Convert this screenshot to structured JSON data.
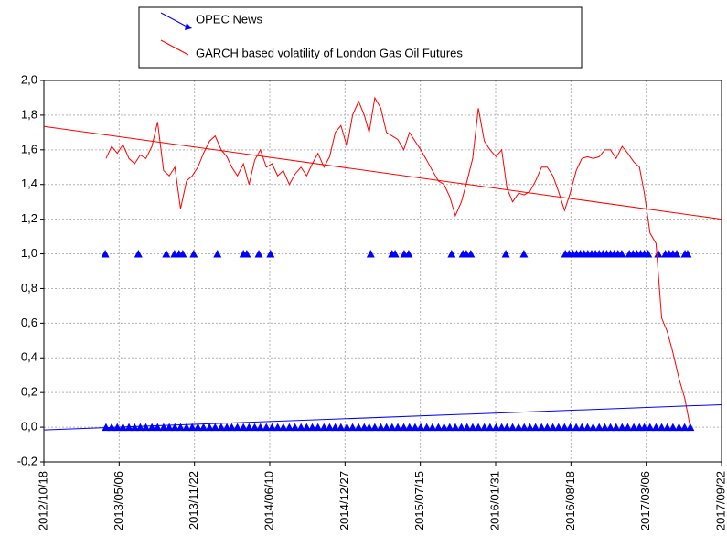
{
  "chart_data": {
    "type": "line",
    "xlim": [
      "2012/10/18",
      "2017/09/22"
    ],
    "xticks": [
      "2012/10/18",
      "2013/05/06",
      "2013/11/22",
      "2014/06/10",
      "2014/12/27",
      "2015/07/15",
      "2016/01/31",
      "2016/08/18",
      "2017/03/06",
      "2017/09/22"
    ],
    "ylim": [
      -0.2,
      2.0
    ],
    "yticks": [
      {
        "value": -0.2,
        "label": "-0,2"
      },
      {
        "value": 0,
        "label": "0,0"
      },
      {
        "value": 0.2,
        "label": "0,2"
      },
      {
        "value": 0.4,
        "label": "0,4"
      },
      {
        "value": 0.6,
        "label": "0,6"
      },
      {
        "value": 0.8,
        "label": "0,8"
      },
      {
        "value": 1.0,
        "label": "1,0"
      },
      {
        "value": 1.2,
        "label": "1,2"
      },
      {
        "value": 1.4,
        "label": "1,4"
      },
      {
        "value": 1.6,
        "label": "1,6"
      },
      {
        "value": 1.8,
        "label": "1,8"
      },
      {
        "value": 2.0,
        "label": "2,0"
      }
    ],
    "grid": true,
    "series": [
      {
        "name": "OPEC News",
        "color": "#0000ff",
        "marker": "triangle",
        "line": false,
        "x": [
          "2013/04/01",
          "2013/04/16",
          "2013/05/01",
          "2013/05/16",
          "2013/06/01",
          "2013/06/16",
          "2013/07/01",
          "2013/07/16",
          "2013/08/01",
          "2013/08/16",
          "2013/09/01",
          "2013/09/16",
          "2013/10/01",
          "2013/10/16",
          "2013/11/01",
          "2013/11/16",
          "2013/12/01",
          "2013/12/16",
          "2014/01/01",
          "2014/01/16",
          "2014/02/01",
          "2014/02/16",
          "2014/03/01",
          "2014/03/16",
          "2014/04/01",
          "2014/04/16",
          "2014/05/01",
          "2014/05/16",
          "2014/06/01",
          "2014/06/16",
          "2014/07/01",
          "2014/07/16",
          "2014/08/01",
          "2014/08/16",
          "2014/09/01",
          "2014/09/16",
          "2014/10/01",
          "2014/10/16",
          "2014/11/01",
          "2014/11/16",
          "2014/12/01",
          "2014/12/16",
          "2015/01/01",
          "2015/01/16",
          "2015/02/01",
          "2015/02/16",
          "2015/03/01",
          "2015/03/16",
          "2015/04/01",
          "2015/04/16",
          "2015/05/01",
          "2015/05/16",
          "2015/06/01",
          "2015/06/16",
          "2015/07/01",
          "2015/07/16",
          "2015/08/01",
          "2015/08/16",
          "2015/09/01",
          "2015/09/16",
          "2015/10/01",
          "2015/10/16",
          "2015/11/01",
          "2015/11/16",
          "2015/12/01",
          "2015/12/16",
          "2016/01/01",
          "2016/01/16",
          "2016/02/01",
          "2016/02/16",
          "2016/03/01",
          "2016/03/16",
          "2016/04/01",
          "2016/04/16",
          "2016/05/01",
          "2016/05/16",
          "2016/06/01",
          "2016/06/16",
          "2016/07/01",
          "2016/07/16",
          "2016/08/01",
          "2016/08/16",
          "2016/09/01",
          "2016/09/16",
          "2016/10/01",
          "2016/10/16",
          "2016/11/01",
          "2016/11/16",
          "2016/12/01",
          "2016/12/16",
          "2017/01/01",
          "2017/01/16",
          "2017/02/01",
          "2017/02/16",
          "2017/03/01",
          "2017/03/16",
          "2017/04/01",
          "2017/04/16",
          "2017/05/01",
          "2017/05/16",
          "2017/06/01",
          "2017/06/16",
          "2017/07/01",
          "2013/03/30",
          "2013/06/26",
          "2013/09/08",
          "2013/09/30",
          "2013/10/12",
          "2013/10/22",
          "2013/11/20",
          "2014/01/22",
          "2014/04/01",
          "2014/04/10",
          "2014/05/12",
          "2014/06/12",
          "2015/03/05",
          "2015/05/01",
          "2015/05/09",
          "2015/06/02",
          "2015/06/14",
          "2015/10/06",
          "2015/11/05",
          "2015/11/14",
          "2015/11/26",
          "2016/02/27",
          "2016/04/15",
          "2016/08/03",
          "2016/08/13",
          "2016/08/23",
          "2016/09/02",
          "2016/09/12",
          "2016/09/22",
          "2016/10/02",
          "2016/10/12",
          "2016/10/22",
          "2016/11/01",
          "2016/11/11",
          "2016/11/21",
          "2016/12/01",
          "2016/12/11",
          "2016/12/21",
          "2016/12/31",
          "2017/01/20",
          "2017/01/30",
          "2017/02/09",
          "2017/02/19",
          "2017/03/01",
          "2017/03/11",
          "2017/04/07",
          "2017/04/26",
          "2017/05/06",
          "2017/05/16",
          "2017/05/26",
          "2017/06/17",
          "2017/06/24"
        ],
        "values": [
          0,
          0,
          0,
          0,
          0,
          0,
          0,
          0,
          0,
          0,
          0,
          0,
          0,
          0,
          0,
          0,
          0,
          0,
          0,
          0,
          0,
          0,
          0,
          0,
          0,
          0,
          0,
          0,
          0,
          0,
          0,
          0,
          0,
          0,
          0,
          0,
          0,
          0,
          0,
          0,
          0,
          0,
          0,
          0,
          0,
          0,
          0,
          0,
          0,
          0,
          0,
          0,
          0,
          0,
          0,
          0,
          0,
          0,
          0,
          0,
          0,
          0,
          0,
          0,
          0,
          0,
          0,
          0,
          0,
          0,
          0,
          0,
          0,
          0,
          0,
          0,
          0,
          0,
          0,
          0,
          0,
          0,
          0,
          0,
          0,
          0,
          0,
          0,
          0,
          0,
          0,
          0,
          0,
          0,
          0,
          0,
          0,
          0,
          0,
          0,
          0,
          0,
          0,
          1,
          1,
          1,
          1,
          1,
          1,
          1,
          1,
          1,
          1,
          1,
          1,
          1,
          1,
          1,
          1,
          1,
          1,
          1,
          1,
          1,
          1,
          1,
          1,
          1,
          1,
          1,
          1,
          1,
          1,
          1,
          1,
          1,
          1,
          1,
          1,
          1,
          1,
          1,
          1,
          1,
          1,
          1,
          1,
          1,
          1,
          1,
          1,
          1,
          1,
          1,
          1
        ]
      },
      {
        "name": "GARCH based volatility of London Gas Oil Futures",
        "color": "#ff0000",
        "marker": "none",
        "line": true,
        "x": [
          "2013/04/01",
          "2013/04/16",
          "2013/05/01",
          "2013/05/16",
          "2013/06/01",
          "2013/06/16",
          "2013/07/01",
          "2013/07/16",
          "2013/08/01",
          "2013/08/16",
          "2013/09/01",
          "2013/09/16",
          "2013/10/01",
          "2013/10/16",
          "2013/11/01",
          "2013/11/16",
          "2013/12/01",
          "2013/12/16",
          "2014/01/01",
          "2014/01/16",
          "2014/02/01",
          "2014/02/16",
          "2014/03/01",
          "2014/03/16",
          "2014/04/01",
          "2014/04/16",
          "2014/05/01",
          "2014/05/16",
          "2014/06/01",
          "2014/06/16",
          "2014/07/01",
          "2014/07/16",
          "2014/08/01",
          "2014/08/16",
          "2014/09/01",
          "2014/09/16",
          "2014/10/01",
          "2014/10/16",
          "2014/11/01",
          "2014/11/16",
          "2014/12/01",
          "2014/12/16",
          "2015/01/01",
          "2015/01/16",
          "2015/02/01",
          "2015/02/16",
          "2015/03/01",
          "2015/03/16",
          "2015/04/01",
          "2015/04/16",
          "2015/05/01",
          "2015/05/16",
          "2015/06/01",
          "2015/06/16",
          "2015/07/01",
          "2015/07/16",
          "2015/08/01",
          "2015/08/16",
          "2015/09/01",
          "2015/09/16",
          "2015/10/01",
          "2015/10/16",
          "2015/11/01",
          "2015/11/16",
          "2015/12/01",
          "2015/12/16",
          "2016/01/01",
          "2016/01/16",
          "2016/02/01",
          "2016/02/16",
          "2016/03/01",
          "2016/03/16",
          "2016/04/01",
          "2016/04/16",
          "2016/05/01",
          "2016/05/16",
          "2016/06/01",
          "2016/06/16",
          "2016/07/01",
          "2016/07/16",
          "2016/08/01",
          "2016/08/16",
          "2016/09/01",
          "2016/09/16",
          "2016/10/01",
          "2016/10/16",
          "2016/11/01",
          "2016/11/16",
          "2016/12/01",
          "2016/12/16",
          "2017/01/01",
          "2017/01/16",
          "2017/02/01",
          "2017/02/16",
          "2017/03/01",
          "2017/03/16",
          "2017/04/01",
          "2017/04/16",
          "2017/05/01",
          "2017/05/16",
          "2017/06/01",
          "2017/06/16",
          "2017/07/01"
        ],
        "values": [
          1.55,
          1.62,
          1.58,
          1.63,
          1.55,
          1.52,
          1.57,
          1.55,
          1.62,
          1.76,
          1.48,
          1.45,
          1.5,
          1.26,
          1.42,
          1.45,
          1.5,
          1.58,
          1.65,
          1.68,
          1.6,
          1.56,
          1.5,
          1.45,
          1.52,
          1.4,
          1.54,
          1.6,
          1.5,
          1.52,
          1.45,
          1.48,
          1.4,
          1.46,
          1.5,
          1.45,
          1.52,
          1.58,
          1.5,
          1.56,
          1.7,
          1.74,
          1.62,
          1.8,
          1.88,
          1.8,
          1.7,
          1.9,
          1.84,
          1.7,
          1.68,
          1.66,
          1.6,
          1.7,
          1.65,
          1.6,
          1.54,
          1.48,
          1.42,
          1.4,
          1.33,
          1.22,
          1.3,
          1.42,
          1.55,
          1.84,
          1.65,
          1.6,
          1.56,
          1.6,
          1.38,
          1.3,
          1.35,
          1.34,
          1.36,
          1.42,
          1.5,
          1.5,
          1.45,
          1.36,
          1.25,
          1.35,
          1.48,
          1.55,
          1.56,
          1.55,
          1.56,
          1.6,
          1.6,
          1.55,
          1.62,
          1.58,
          1.53,
          1.5,
          1.35,
          1.12,
          1.06,
          0.63,
          0.55,
          0.43,
          0.28,
          0.17,
          0.0
        ]
      }
    ],
    "trendlines": [
      {
        "color": "#ff0000",
        "x": [
          "2012/10/18",
          "2017/09/22"
        ],
        "values": [
          1.735,
          1.2
        ]
      },
      {
        "color": "#0000ff",
        "x": [
          "2012/10/18",
          "2017/09/22"
        ],
        "values": [
          -0.016,
          0.13
        ]
      }
    ]
  }
}
